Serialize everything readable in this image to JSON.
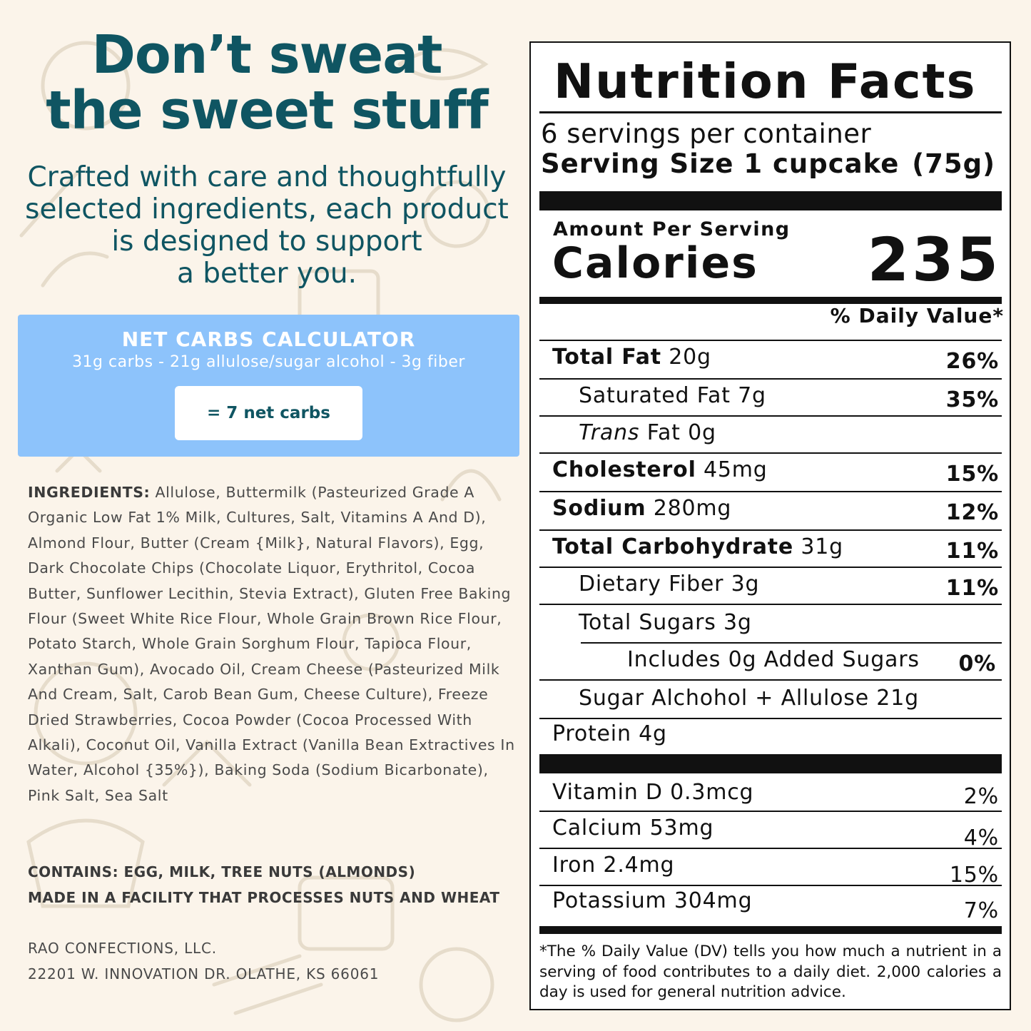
{
  "headline": [
    "Don’t sweat",
    "the sweet stuff"
  ],
  "subhead": [
    "Crafted with care and thoughtfully",
    "selected ingredients, each product",
    "is designed to support",
    "a better you."
  ],
  "calculator": {
    "title": "NET CARBS CALCULATOR",
    "formula": "31g carbs - 21g allulose/sugar alcohol - 3g fiber",
    "result": "= 7 net carbs"
  },
  "ingredients": {
    "label": "INGREDIENTS:",
    "text": "Allulose, Buttermilk (Pasteurized Grade A Organic Low Fat 1% Milk, Cultures, Salt, Vitamins A And D), Almond Flour, Butter (Cream {Milk}, Natural Flavors), Egg, Dark Chocolate Chips (Chocolate Liquor, Erythritol, Cocoa Butter, Sunflower Lecithin, Stevia Extract), Gluten Free Baking Flour (Sweet White Rice Flour, Whole Grain Brown Rice Flour, Potato Starch, Whole Grain Sorghum Flour, Tapioca Flour, Xanthan Gum), Avocado Oil, Cream Cheese (Pasteurized Milk And Cream, Salt, Carob Bean Gum, Cheese Culture), Freeze Dried Strawberries, Cocoa Powder (Cocoa Processed With Alkali), Coconut Oil, Vanilla Extract (Vanilla Bean Extractives In Water, Alcohol {35%}), Baking Soda (Sodium Bicarbonate), Pink Salt, Sea Salt"
  },
  "allergens": {
    "contains": "CONTAINS: EGG, MILK, TREE NUTS (ALMONDS)",
    "facility": "MADE IN A FACILITY THAT PROCESSES NUTS AND WHEAT"
  },
  "company": {
    "name": "RAO CONFECTIONS, LLC.",
    "address": "22201 W. INNOVATION DR. OLATHE, KS 66061"
  },
  "nutrition": {
    "title": "Nutrition Facts",
    "servings": "6 servings per container",
    "serving_size_label": "Serving Size 1 cupcake",
    "serving_size_weight": "(75g)",
    "amount_per_serving": "Amount Per Serving",
    "calories_label": "Calories",
    "calories": "235",
    "dv_header": "% Daily Value*",
    "rows": {
      "total_fat": {
        "name": "Total Fat",
        "amount": "20g",
        "dv": "26%"
      },
      "saturated_fat": {
        "name": "Saturated Fat 7g",
        "dv": "35%"
      },
      "trans_fat": {
        "italic": "Trans",
        "name": " Fat 0g"
      },
      "cholesterol": {
        "name": "Cholesterol",
        "amount": "45mg",
        "dv": "15%"
      },
      "sodium": {
        "name": "Sodium",
        "amount": "280mg",
        "dv": "12%"
      },
      "total_carb": {
        "name": "Total Carbohydrate",
        "amount": "31g",
        "dv": "11%"
      },
      "fiber": {
        "name": "Dietary Fiber 3g",
        "dv": "11%"
      },
      "sugars": {
        "name": "Total Sugars 3g"
      },
      "added_sugars": {
        "name": "Includes 0g Added Sugars",
        "dv": "0%"
      },
      "sugar_alcohol": {
        "name": "Sugar Alchohol + Allulose 21g"
      },
      "protein": {
        "name": "Protein 4g"
      },
      "vitamin_d": {
        "name": "Vitamin D 0.3mcg",
        "dv": "2%"
      },
      "calcium": {
        "name": "Calcium 53mg",
        "dv": "4%"
      },
      "iron": {
        "name": "Iron 2.4mg",
        "dv": "15%"
      },
      "potassium": {
        "name": "Potassium 304mg",
        "dv": "7%"
      }
    },
    "footnote": "*The % Daily Value (DV) tells you how much a nutrient in a serving of food contributes to a daily diet. 2,000 calories a day is used for general nutrition advice."
  }
}
